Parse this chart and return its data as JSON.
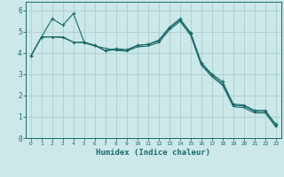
{
  "title": "",
  "xlabel": "Humidex (Indice chaleur)",
  "bg_color": "#cce8e8",
  "grid_color": "#aacfcf",
  "line_color": "#1a6b6b",
  "xlim": [
    -0.5,
    23.5
  ],
  "ylim": [
    0,
    6.4
  ],
  "xticks": [
    0,
    1,
    2,
    3,
    4,
    5,
    6,
    7,
    8,
    9,
    10,
    11,
    12,
    13,
    14,
    15,
    16,
    17,
    18,
    19,
    20,
    21,
    22,
    23
  ],
  "yticks": [
    0,
    1,
    2,
    3,
    4,
    5,
    6
  ],
  "line1_x": [
    0,
    1,
    2,
    3,
    4,
    5,
    6,
    7,
    8,
    9,
    10,
    11,
    12,
    13,
    14,
    15,
    16,
    17,
    18,
    19,
    20,
    21,
    22,
    23
  ],
  "line1_y": [
    3.85,
    4.75,
    5.6,
    5.3,
    5.85,
    4.5,
    4.35,
    4.1,
    4.2,
    4.15,
    4.35,
    4.4,
    4.6,
    5.2,
    5.6,
    4.95,
    3.55,
    3.0,
    2.65,
    1.6,
    1.55,
    1.3,
    1.3,
    0.65
  ],
  "line2_x": [
    0,
    1,
    2,
    3,
    4,
    5,
    6,
    7,
    8,
    9,
    10,
    11,
    12,
    13,
    14,
    15,
    16,
    17,
    18,
    19,
    20,
    21,
    22,
    23
  ],
  "line2_y": [
    3.85,
    4.75,
    4.75,
    4.75,
    4.5,
    4.5,
    4.35,
    4.1,
    4.15,
    4.1,
    4.35,
    4.4,
    4.55,
    5.15,
    5.55,
    4.9,
    3.5,
    2.95,
    2.55,
    1.55,
    1.5,
    1.25,
    1.25,
    0.6
  ],
  "line3_x": [
    0,
    1,
    2,
    3,
    4,
    5,
    6,
    7,
    8,
    9,
    10,
    11,
    12,
    13,
    14,
    15,
    16,
    17,
    18,
    19,
    20,
    21,
    22,
    23
  ],
  "line3_y": [
    3.85,
    4.75,
    4.75,
    4.72,
    4.5,
    4.48,
    4.32,
    4.22,
    4.12,
    4.08,
    4.28,
    4.32,
    4.48,
    5.08,
    5.48,
    4.82,
    3.42,
    2.88,
    2.48,
    1.48,
    1.42,
    1.18,
    1.18,
    0.52
  ]
}
